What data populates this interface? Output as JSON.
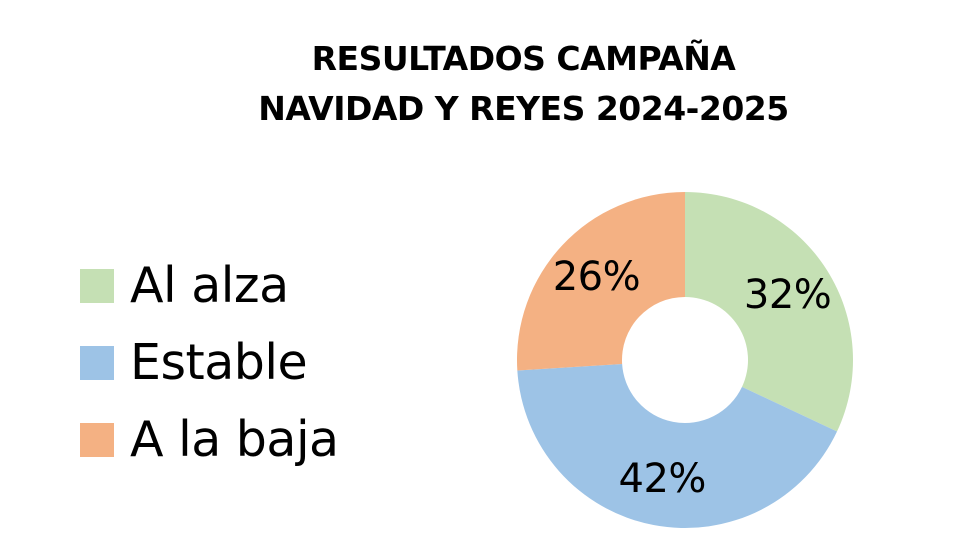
{
  "title": {
    "line1": "RESULTADOS CAMPAÑA",
    "line2": "NAVIDAD Y REYES 2024-2025"
  },
  "legend": [
    {
      "label": "Al alza",
      "color": "#c5e0b4"
    },
    {
      "label": "Estable",
      "color": "#9dc3e6"
    },
    {
      "label": "A la baja",
      "color": "#f4b183"
    }
  ],
  "chart_data": {
    "type": "pie",
    "subtype": "donut",
    "title": "RESULTADOS CAMPAÑA NAVIDAD Y REYES 2024-2025",
    "categories": [
      "Al alza",
      "Estable",
      "A la baja"
    ],
    "values": [
      32,
      42,
      26
    ],
    "unit": "%",
    "data_labels": [
      "32%",
      "42%",
      "26%"
    ],
    "colors": [
      "#c5e0b4",
      "#9dc3e6",
      "#f4b183"
    ],
    "start_angle": "12 o'clock",
    "direction": "clockwise",
    "legend_position": "left"
  }
}
